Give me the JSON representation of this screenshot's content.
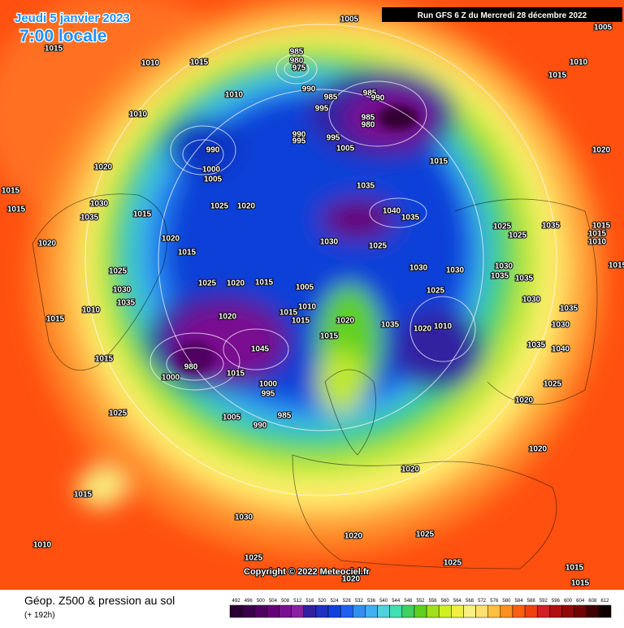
{
  "header": {
    "date": "Jeudi 5 janvier 2023",
    "time": "7:00 locale",
    "run": "Run GFS 6 Z du Mercredi 28 décembre 2022"
  },
  "copyright": "Copyright © 2022 Meteociel.fr",
  "footer": {
    "title": "Géop. Z500 & pression au sol",
    "lead": "(+ 192h)"
  },
  "legend": {
    "ticks": [
      492,
      496,
      500,
      504,
      508,
      512,
      516,
      520,
      524,
      528,
      532,
      536,
      540,
      544,
      548,
      552,
      556,
      560,
      564,
      568,
      572,
      576,
      580,
      584,
      588,
      592,
      596,
      600,
      604,
      608,
      612
    ]
  },
  "pressure_labels": [
    1005,
    1005,
    1015,
    1010,
    1015,
    985,
    980,
    975,
    990,
    1010,
    1015,
    1010,
    985,
    995,
    985,
    990,
    1010,
    985,
    980,
    990,
    995,
    995,
    1005,
    990,
    1020,
    1015,
    1005,
    1000,
    1020,
    1015,
    1015,
    1030,
    1035,
    1015,
    1025,
    1020,
    1035,
    1040,
    1035,
    1030,
    1025,
    1025,
    1025,
    1035,
    1015,
    1015,
    1010,
    1020,
    1020,
    1015,
    1030,
    1030,
    1030,
    1035,
    1035,
    1015,
    1025,
    1025,
    1020,
    1015,
    1005,
    1025,
    1030,
    1035,
    1030,
    1010,
    1020,
    1015,
    1010,
    1015,
    1020,
    1035,
    1020,
    1010,
    1035,
    1015,
    1030,
    1015,
    1045,
    1035,
    1040,
    1015,
    980,
    1000,
    1015,
    1000,
    995,
    1025,
    1020,
    1025,
    1005,
    990,
    985,
    1020,
    1020,
    1015,
    1030,
    1020,
    1025,
    1010,
    1025,
    1025,
    1020,
    1015,
    1015
  ]
}
